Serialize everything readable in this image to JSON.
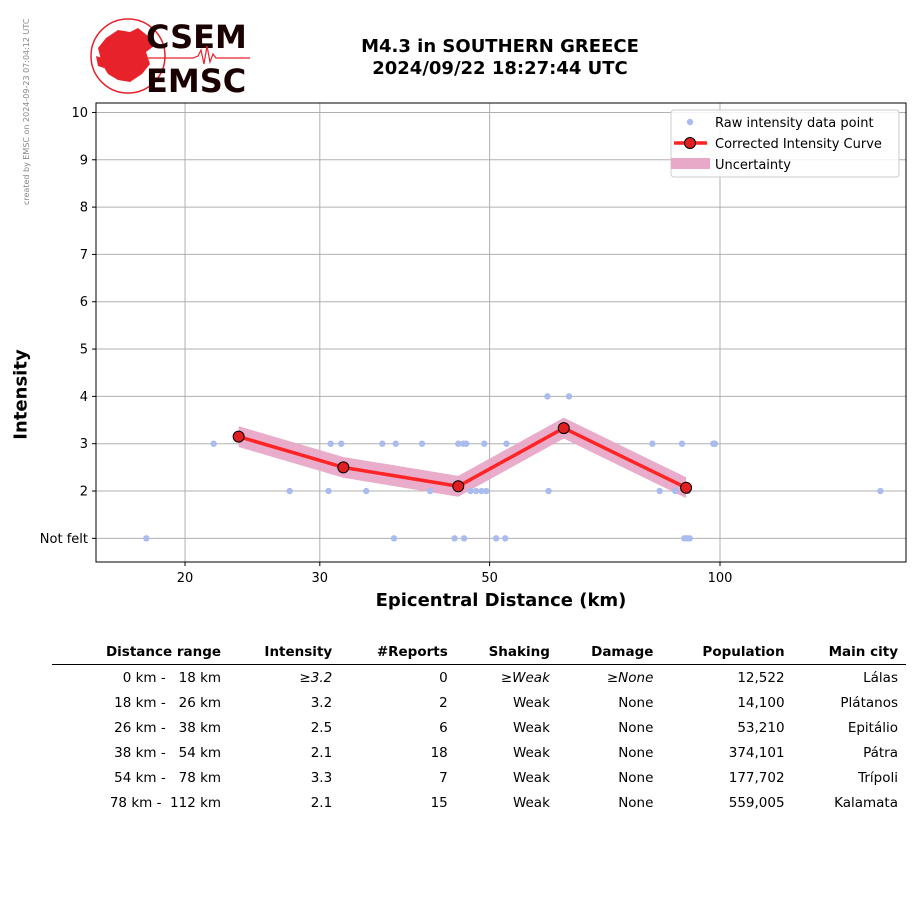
{
  "credit": "created by EMSC on 2024-09-23 07:04:12 UTC",
  "logo": {
    "line1": "CSEM",
    "line2": "EMSC",
    "color": "#e8222a"
  },
  "title": {
    "line1": "M4.3 in SOUTHERN GREECE",
    "line2": "2024/09/22 18:27:44 UTC"
  },
  "chart_data": {
    "type": "scatter",
    "xlabel": "Epicentral Distance (km)",
    "ylabel": "Intensity",
    "x_scale": "log",
    "xlim": [
      15.3,
      175
    ],
    "ylim": [
      0.5,
      10.2
    ],
    "x_ticks": [
      {
        "value": 20,
        "label": "20"
      },
      {
        "value": 30,
        "label": "30"
      },
      {
        "value": 50,
        "label": "50"
      },
      {
        "value": 100,
        "label": "100"
      }
    ],
    "y_ticks": [
      {
        "value": 1,
        "label": "Not felt"
      },
      {
        "value": 2,
        "label": "2"
      },
      {
        "value": 3,
        "label": "3"
      },
      {
        "value": 4,
        "label": "4"
      },
      {
        "value": 5,
        "label": "5"
      },
      {
        "value": 6,
        "label": "6"
      },
      {
        "value": 7,
        "label": "7"
      },
      {
        "value": 8,
        "label": "8"
      },
      {
        "value": 9,
        "label": "9"
      },
      {
        "value": 10,
        "label": "10"
      }
    ],
    "grid": true,
    "legend_position": "top-right",
    "series": [
      {
        "name": "Raw intensity data point",
        "color": "#aabbee",
        "points": [
          [
            17.8,
            1
          ],
          [
            21.8,
            3
          ],
          [
            27.4,
            2
          ],
          [
            30.8,
            2
          ],
          [
            31,
            3
          ],
          [
            32,
            3
          ],
          [
            34.5,
            2
          ],
          [
            36.2,
            3
          ],
          [
            37.7,
            3
          ],
          [
            37.5,
            1
          ],
          [
            40.8,
            3
          ],
          [
            41.8,
            2
          ],
          [
            45,
            1
          ],
          [
            45.5,
            3
          ],
          [
            46.2,
            3
          ],
          [
            46.6,
            3
          ],
          [
            46.3,
            1
          ],
          [
            47.2,
            2
          ],
          [
            48,
            2
          ],
          [
            48.8,
            2
          ],
          [
            49.2,
            3
          ],
          [
            49.5,
            2
          ],
          [
            51,
            1
          ],
          [
            52.4,
            1
          ],
          [
            52.6,
            3
          ],
          [
            59.5,
            4
          ],
          [
            59.7,
            2
          ],
          [
            63.5,
            4
          ],
          [
            81.6,
            3
          ],
          [
            83.4,
            2
          ],
          [
            87.4,
            2
          ],
          [
            89.2,
            3
          ],
          [
            89.8,
            1
          ],
          [
            90.5,
            1
          ],
          [
            91.3,
            1
          ],
          [
            90.8,
            2
          ],
          [
            98,
            3
          ],
          [
            98.5,
            3
          ],
          [
            162,
            2
          ]
        ]
      },
      {
        "name": "Corrected Intensity Curve",
        "color": "#ff2525",
        "points": [
          [
            23.5,
            3.15
          ],
          [
            32.2,
            2.5
          ],
          [
            45.5,
            2.1
          ],
          [
            62.5,
            3.33
          ],
          [
            90.3,
            2.07
          ]
        ]
      },
      {
        "name": "Uncertainty",
        "color": "#e8a8c8",
        "band": 0.22
      }
    ]
  },
  "table": {
    "headers": [
      "Distance range",
      "Intensity",
      "#Reports",
      "Shaking",
      "Damage",
      "Population",
      "Main city"
    ],
    "rows": [
      {
        "range": "0 km -   18 km",
        "intensity": "≥3.2",
        "reports": "0",
        "shaking": "≥Weak",
        "damage": "≥None",
        "population": "12,522",
        "city": "Lálas"
      },
      {
        "range": "18 km -   26 km",
        "intensity": "3.2",
        "reports": "2",
        "shaking": "Weak",
        "damage": "None",
        "population": "14,100",
        "city": "Plátanos"
      },
      {
        "range": "26 km -   38 km",
        "intensity": "2.5",
        "reports": "6",
        "shaking": "Weak",
        "damage": "None",
        "population": "53,210",
        "city": "Epitálio"
      },
      {
        "range": "38 km -   54 km",
        "intensity": "2.1",
        "reports": "18",
        "shaking": "Weak",
        "damage": "None",
        "population": "374,101",
        "city": "Pátra"
      },
      {
        "range": "54 km -   78 km",
        "intensity": "3.3",
        "reports": "7",
        "shaking": "Weak",
        "damage": "None",
        "population": "177,702",
        "city": "Trípoli"
      },
      {
        "range": "78 km -  112 km",
        "intensity": "2.1",
        "reports": "15",
        "shaking": "Weak",
        "damage": "None",
        "population": "559,005",
        "city": "Kalamata"
      }
    ]
  }
}
